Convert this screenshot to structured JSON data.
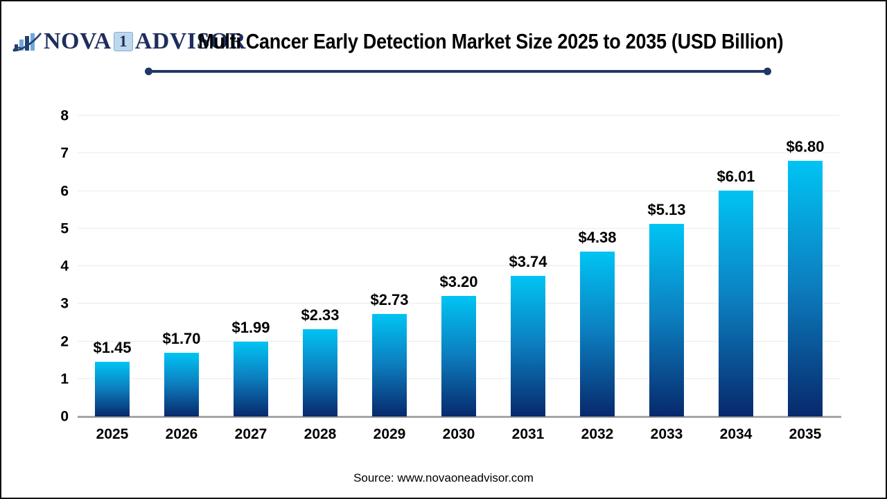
{
  "logo": {
    "icon": "bar-chart-swoosh-icon",
    "part1": "NOVA",
    "part2": "1",
    "part3": "ADVISOR"
  },
  "footer": {
    "source": "Source: www.novaoneadvisor.com"
  },
  "chart_data": {
    "type": "bar",
    "title": "Multi Cancer Early Detection Market Size 2025 to 2035 (USD Billion)",
    "unit": "USD Billion",
    "categories": [
      "2025",
      "2026",
      "2027",
      "2028",
      "2029",
      "2030",
      "2031",
      "2032",
      "2033",
      "2034",
      "2035"
    ],
    "values": [
      1.45,
      1.7,
      1.99,
      2.33,
      2.73,
      3.2,
      3.74,
      4.38,
      5.13,
      6.01,
      6.8
    ],
    "value_labels": [
      "$1.45",
      "$1.70",
      "$1.99",
      "$2.33",
      "$2.73",
      "$3.20",
      "$3.74",
      "$4.38",
      "$5.13",
      "$6.01",
      "$6.80"
    ],
    "xlabel": "",
    "ylabel": "",
    "ylim": [
      0,
      8
    ],
    "yticks": [
      0,
      1,
      2,
      3,
      4,
      5,
      6,
      7,
      8
    ],
    "grid": "horizontal",
    "legend": "none",
    "colors": {
      "bar_gradient_top": "#00c4f4",
      "bar_gradient_bottom": "#07296c",
      "accent_navy": "#1f3864",
      "axis_line": "#a6a6a6",
      "gridline": "#ebebeb",
      "logo_navy": "#1e2d5c",
      "logo_light_blue": "#6fa8dc"
    }
  }
}
